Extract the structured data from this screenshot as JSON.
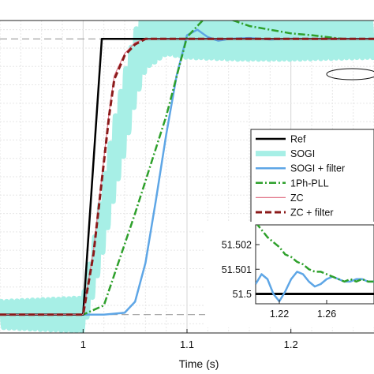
{
  "chart_data": [
    {
      "type": "line",
      "title": "",
      "xlabel": "Time (s)",
      "ylabel": "",
      "xlim": [
        0.92,
        1.28
      ],
      "ylim": [
        49.9,
        51.6
      ],
      "x_tick_labels": [
        "1",
        "1.1",
        "1.2"
      ],
      "x_ticks": [
        1.0,
        1.1,
        1.2
      ],
      "grid": true,
      "reference_levels": [
        50.0,
        51.5
      ],
      "legend_position": "right-middle",
      "series": [
        {
          "name": "Ref",
          "color": "#000000",
          "style": "solid",
          "x": [
            0.92,
            1.0,
            1.018,
            1.28
          ],
          "y": [
            50.0,
            50.0,
            51.5,
            51.5
          ]
        },
        {
          "name": "SOGI",
          "color": "#a7efe6",
          "style": "solid-thick",
          "x": [
            0.92,
            1.0,
            1.01,
            1.02,
            1.03,
            1.04,
            1.05,
            1.06,
            1.08,
            1.1,
            1.15,
            1.2,
            1.28
          ],
          "y": [
            50.0,
            50.0,
            50.25,
            50.55,
            50.85,
            51.1,
            51.35,
            51.5,
            51.55,
            51.52,
            51.51,
            51.5,
            51.5
          ],
          "ripple": [
            0.07,
            0.09,
            0.13,
            0.18,
            0.2,
            0.21,
            0.19,
            0.16,
            0.13,
            0.12,
            0.12,
            0.11,
            0.1
          ]
        },
        {
          "name": "SOGI + filter",
          "color": "#5ea6e6",
          "style": "solid",
          "x": [
            0.92,
            1.02,
            1.04,
            1.05,
            1.06,
            1.07,
            1.08,
            1.09,
            1.1,
            1.11,
            1.12,
            1.13,
            1.14,
            1.16,
            1.18,
            1.2,
            1.28
          ],
          "y": [
            50.0,
            50.0,
            50.01,
            50.07,
            50.28,
            50.62,
            50.98,
            51.3,
            51.52,
            51.55,
            51.51,
            51.49,
            51.5,
            51.505,
            51.497,
            51.501,
            51.5
          ]
        },
        {
          "name": "1Ph-PLL",
          "color": "#2ea02b",
          "style": "dash-dot",
          "x": [
            0.92,
            1.0,
            1.02,
            1.05,
            1.08,
            1.1,
            1.12,
            1.14,
            1.16,
            1.18,
            1.2,
            1.22,
            1.25,
            1.28
          ],
          "y": [
            50.0,
            50.0,
            50.05,
            50.55,
            51.08,
            51.51,
            51.63,
            51.61,
            51.57,
            51.55,
            51.53,
            51.52,
            51.5,
            51.5
          ]
        },
        {
          "name": "ZC",
          "color": "#e37b8e",
          "style": "solid-thin",
          "x": [
            0.92,
            1.0,
            1.01,
            1.02,
            1.025,
            1.03,
            1.04,
            1.05,
            1.06,
            1.28
          ],
          "y": [
            50.0,
            50.0,
            50.35,
            50.85,
            51.1,
            51.3,
            51.42,
            51.48,
            51.5,
            51.5
          ]
        },
        {
          "name": "ZC + filter",
          "color": "#8b1a1a",
          "style": "dashed",
          "x": [
            0.92,
            1.0,
            1.01,
            1.02,
            1.025,
            1.03,
            1.04,
            1.05,
            1.06,
            1.28
          ],
          "y": [
            50.0,
            50.0,
            50.33,
            50.83,
            51.08,
            51.28,
            51.41,
            51.47,
            51.5,
            51.5
          ]
        }
      ]
    },
    {
      "type": "line",
      "title": "",
      "xlim": [
        1.2,
        1.3
      ],
      "ylim": [
        51.4996,
        51.5028
      ],
      "x_tick_labels": [
        "1.22",
        "1.26"
      ],
      "x_ticks": [
        1.22,
        1.26
      ],
      "y_tick_labels": [
        "51.5",
        "51.501",
        "51.502"
      ],
      "y_ticks": [
        51.5,
        51.501,
        51.502
      ],
      "series": [
        {
          "name": "Ref",
          "color": "#000000",
          "style": "solid",
          "x": [
            1.2,
            1.3
          ],
          "y": [
            51.5,
            51.5
          ]
        },
        {
          "name": "SOGI + filter",
          "color": "#5ea6e6",
          "style": "solid",
          "x": [
            1.2,
            1.205,
            1.21,
            1.215,
            1.22,
            1.225,
            1.23,
            1.235,
            1.24,
            1.245,
            1.25,
            1.255,
            1.26,
            1.265,
            1.27,
            1.275,
            1.28,
            1.285,
            1.29,
            1.295,
            1.3
          ],
          "y": [
            51.5004,
            51.5008,
            51.5006,
            51.5,
            51.4997,
            51.5001,
            51.5006,
            51.5009,
            51.5008,
            51.5005,
            51.5003,
            51.5004,
            51.5006,
            51.5007,
            51.5006,
            51.5005,
            51.5005,
            51.5006,
            51.5006,
            51.5005,
            51.5005
          ]
        },
        {
          "name": "1Ph-PLL",
          "color": "#2ea02b",
          "style": "dash-dot",
          "x": [
            1.2,
            1.205,
            1.21,
            1.215,
            1.22,
            1.225,
            1.23,
            1.235,
            1.24,
            1.245,
            1.25,
            1.255,
            1.26,
            1.265,
            1.27,
            1.275,
            1.28,
            1.285,
            1.29,
            1.295,
            1.3
          ],
          "y": [
            51.5029,
            51.5026,
            51.5023,
            51.5021,
            51.5019,
            51.5016,
            51.5015,
            51.5013,
            51.5012,
            51.501,
            51.5009,
            51.5009,
            51.5008,
            51.5007,
            51.5006,
            51.5005,
            51.5006,
            51.5005,
            51.5006,
            51.5005,
            51.5005
          ]
        }
      ]
    }
  ]
}
